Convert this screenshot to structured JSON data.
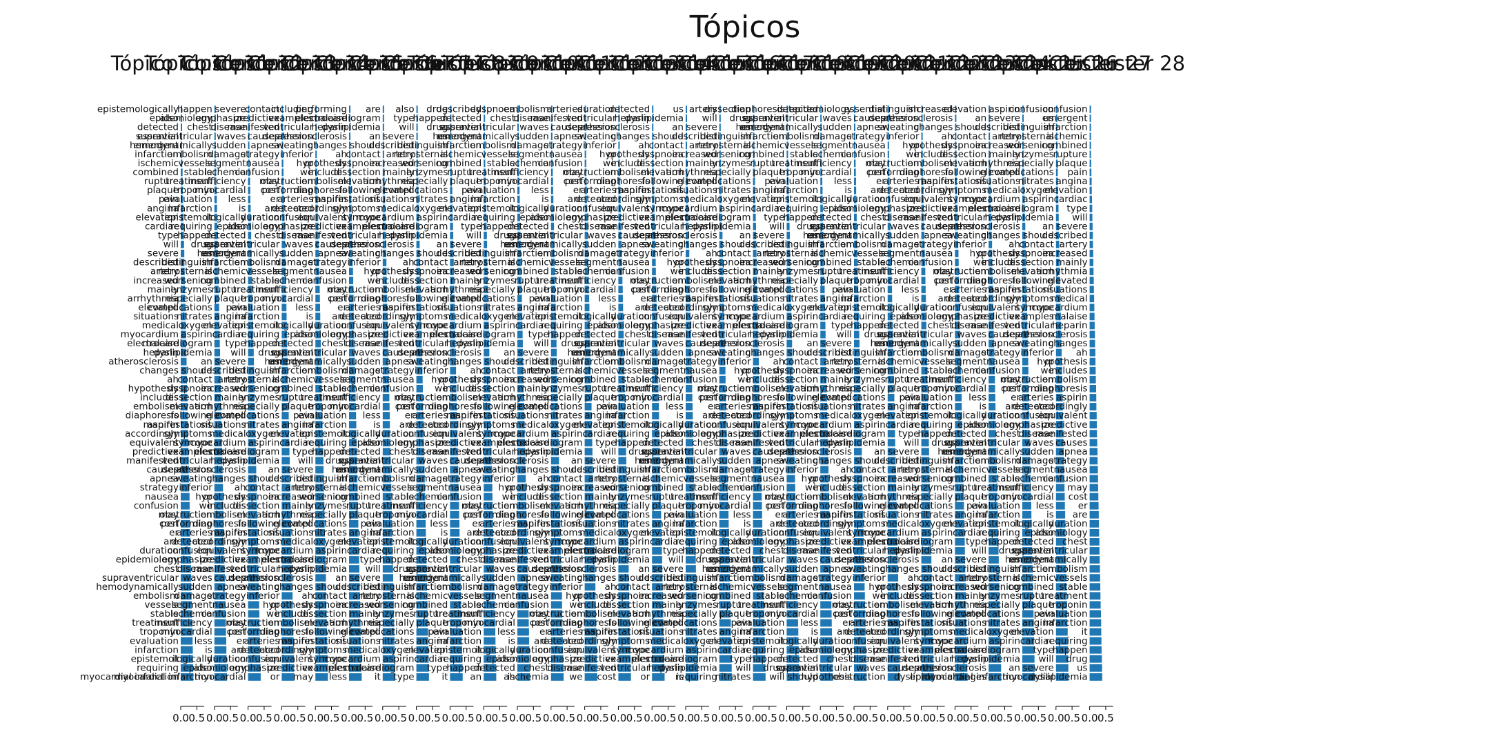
{
  "figure": {
    "title": "Tópicos"
  },
  "chart_data": {
    "type": "bar",
    "orientation": "horizontal",
    "panel_count": 28,
    "title": "Tópicos",
    "bar_color": "#1f77b4",
    "xlim": [
      0,
      0.6
    ],
    "xticks": [
      "0.0",
      "0.5"
    ],
    "last_panel_title": "Tópico Cluster 28",
    "panels": [
      {
        "title": "Tópico Cluster 1",
        "top_word": "epistemologically",
        "bottom_word": "myocardial infarction"
      },
      {
        "title": "Tópico Cluster 2",
        "top_word": "happen"
      },
      {
        "title": "Tópico Cluster 3",
        "top_word": "severe"
      },
      {
        "title": "Tópico Cluster 4",
        "top_word": "contact"
      },
      {
        "title": "Tópico Cluster 5",
        "top_word": "including"
      },
      {
        "title": "Tópico Cluster 6",
        "top_word": "performing"
      },
      {
        "title": "Tópico Cluster 7",
        "top_word": "are"
      },
      {
        "title": "Tópico Cluster 8",
        "top_word": "also"
      },
      {
        "title": "Tópico Cluster 9",
        "top_word": "drug"
      },
      {
        "title": "Tópico Cluster 10",
        "top_word": "described"
      },
      {
        "title": "Tópico Cluster 11",
        "top_word": "dyspnoea"
      },
      {
        "title": "Tópico Cluster 12",
        "top_word": "embolism"
      },
      {
        "title": "Tópico Cluster 13",
        "top_word": "arteries"
      },
      {
        "title": "Tópico Cluster 14",
        "top_word": "duration"
      },
      {
        "title": "Tópico Cluster 15",
        "top_word": "detected"
      },
      {
        "title": "Tópico Cluster 16",
        "top_word": "us"
      },
      {
        "title": "Tópico Cluster 17",
        "top_word": "artery"
      },
      {
        "title": "Tópico Cluster 18",
        "top_word": "dissection"
      },
      {
        "title": "Tópico Cluster 19",
        "top_word": "diaphoresis"
      },
      {
        "title": "Tópico Cluster 20",
        "top_word": "detected"
      },
      {
        "title": "Tópico Cluster 21",
        "top_word": "epidemiology"
      },
      {
        "title": "Tópico Cluster 22",
        "top_word": "essential"
      },
      {
        "title": "Tópico Cluster 23",
        "top_word": "distinguish"
      },
      {
        "title": "Tópico Cluster 24",
        "top_word": "increased"
      },
      {
        "title": "Tópico Cluster 25",
        "top_word": "elevation"
      },
      {
        "title": "Tópico Cluster 26",
        "top_word": "aspirin"
      },
      {
        "title": "Tópico Cluster 27",
        "top_word": "confusion"
      },
      {
        "title": "Tópico Cluster 28",
        "top_word": "confusion",
        "bottom_word": "dyslipidemia"
      }
    ],
    "words": [
      "epistemologically",
      "happen",
      "severe",
      "contact",
      "includes",
      "performing",
      "are",
      "also",
      "drug",
      "described",
      "dyspnoea",
      "embolism",
      "arteries",
      "duration",
      "detected",
      "us",
      "artery",
      "dissection",
      "diaphoresis",
      "detected",
      "epidemiology",
      "essential",
      "distinguish",
      "increased",
      "elevation",
      "aspirin",
      "confusion",
      "chest",
      "emergent",
      "retrosternal",
      "mainly",
      "following",
      "accordingly",
      "emphasize",
      "supraventricular",
      "infarction",
      "worsening",
      "arrhythmia",
      "manifestations",
      "equivalent",
      "disease",
      "hemodynamically",
      "ischemic",
      "enzymes",
      "elevated",
      "symptoms",
      "predictive",
      "waves",
      "embolism",
      "combined",
      "especially",
      "situations",
      "syncope",
      "manifested",
      "sudden",
      "vessels",
      "rupture",
      "complications",
      "medical",
      "examples",
      "causes",
      "damage",
      "stable",
      "plaque",
      "nitrates",
      "myocardium",
      "ventricular",
      "apnea",
      "segment",
      "treatment",
      "pain",
      "oxygen",
      "malaise",
      "depression",
      "strategy",
      "ischemia",
      "troponin",
      "angina",
      "aspirin",
      "heparin",
      "sweating",
      "nausea",
      "insufficiency",
      "evaluation",
      "elevation",
      "electrocardiogram",
      "atherosclerosis",
      "inferior",
      "confusion",
      "myocardial",
      "infarction",
      "cardiac",
      "dyslipidemia",
      "changes",
      "or",
      "may",
      "less",
      "it",
      "type",
      "an",
      "ah",
      "we",
      "cost",
      "is",
      "requiring",
      "will",
      "should",
      "hypothesis",
      "obstruction",
      "er"
    ],
    "visible_bottom_words": [
      "changes",
      "myocardial infarction",
      "myocardial",
      "or",
      "may",
      "less",
      "it",
      "type",
      "it",
      "an",
      "ah",
      "ischemia",
      "we",
      "cost",
      "or",
      "is",
      "requiring",
      "nitrates",
      "will",
      "should",
      "hypothesis",
      "obstruction",
      "er",
      "dyslipidemia"
    ]
  }
}
